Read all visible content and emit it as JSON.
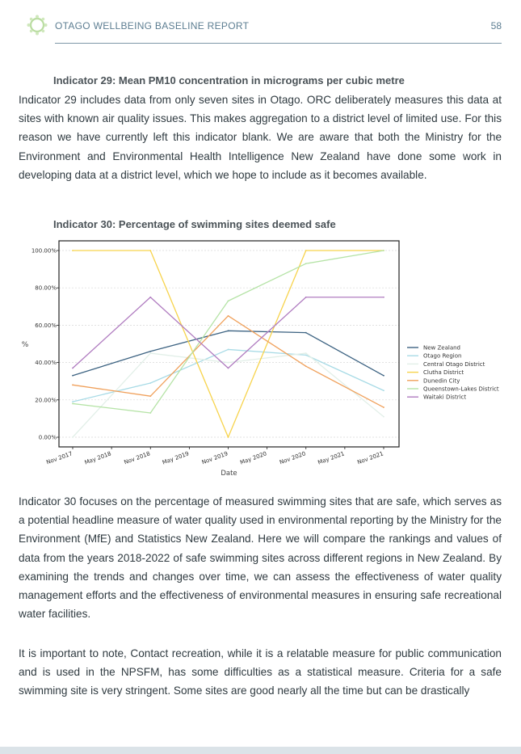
{
  "header": {
    "title": "OTAGO WELLBEING BASELINE REPORT",
    "page_number": "58"
  },
  "section1": {
    "heading": "Indicator 29: Mean PM10 concentration in micrograms per cubic metre",
    "paragraph": "Indicator 29 includes data from only seven sites in Otago. ORC deliberately measures this data at sites with known air quality issues. This makes aggregation to a district level of limited use. For this reason we have currently left this indicator blank. We are aware that both the Ministry for the Environment and Environmental Health Intelligence New Zealand have done some work in developing data at a district level, which we hope to include as it becomes available."
  },
  "section2": {
    "heading": "Indicator 30: Percentage of swimming sites deemed safe",
    "paragraph1": "Indicator 30 focuses on the percentage of measured swimming sites that are safe, which serves as a potential headline measure of water quality used in environmental reporting by the Ministry for the Environment (MfE) and Statistics New Zealand. Here we will compare the rankings and values of data from the years 2018-2022 of safe swimming sites across different regions in New Zealand. By examining the trends and changes over time, we can assess the effectiveness of water quality management efforts and the effectiveness of environmental measures in ensuring safe recreational water facilities.",
    "paragraph2": "It is important to note, Contact recreation, while it is a relatable measure for public communication and is used in the NPSFM, has some difficulties as a statistical measure. Criteria for a safe swimming site is very stringent. Some sites are good nearly all the time but can be drastically"
  },
  "chart_data": {
    "type": "line",
    "title": "",
    "xlabel": "Date",
    "ylabel": "%",
    "x": [
      "Nov 2017",
      "Nov 2018",
      "Nov 2019",
      "Nov 2020",
      "Nov 2021"
    ],
    "tick_labels": [
      "Nov 2017",
      "May 2018",
      "Nov 2018",
      "May 2019",
      "Nov 2019",
      "May 2020",
      "Nov 2020",
      "May 2021",
      "Nov 2021"
    ],
    "ylim": [
      0,
      100
    ],
    "yticks": [
      "0.00%",
      "20.00%",
      "40.00%",
      "60.00%",
      "80.00%",
      "100.00%"
    ],
    "grid": true,
    "legend_position": "right",
    "series": [
      {
        "name": "New Zealand",
        "color": "#3d6382",
        "values": [
          33,
          46,
          57,
          56,
          33
        ]
      },
      {
        "name": "Otago Region",
        "color": "#a8dbe6",
        "values": [
          19,
          29,
          47,
          44,
          25
        ]
      },
      {
        "name": "Central Otago District",
        "color": "#e2efe8",
        "values": [
          0,
          45,
          40,
          45,
          11
        ]
      },
      {
        "name": "Clutha District",
        "color": "#f7d34c",
        "values": [
          100,
          100,
          0,
          100,
          100
        ]
      },
      {
        "name": "Dunedin City",
        "color": "#f0a15c",
        "values": [
          28,
          22,
          65,
          38,
          16
        ]
      },
      {
        "name": "Queenstown-Lakes District",
        "color": "#b5e3a6",
        "values": [
          18,
          13,
          73,
          93,
          100
        ]
      },
      {
        "name": "Waitaki District",
        "color": "#b07cc0",
        "values": [
          37,
          75,
          37,
          75,
          75
        ]
      }
    ]
  }
}
